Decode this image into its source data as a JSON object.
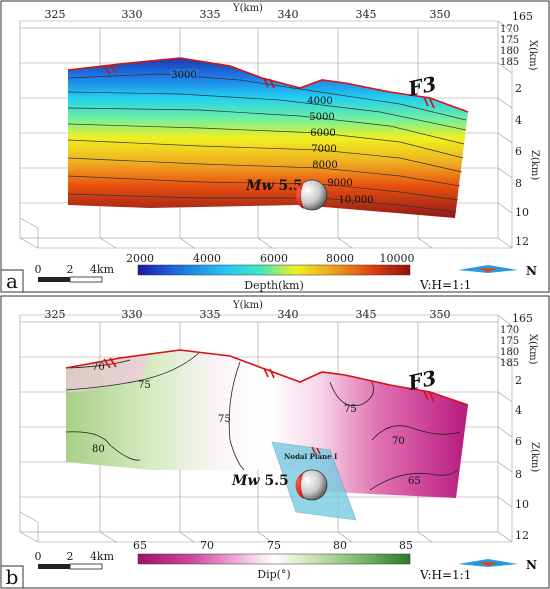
{
  "panels": [
    {
      "letter": "a",
      "y_axis_label": "Y(km)",
      "y_ticks": [
        "325",
        "330",
        "335",
        "340",
        "345",
        "350"
      ],
      "x_axis_label": "X(km)",
      "x_ticks": [
        "165",
        "170",
        "175",
        "180",
        "185"
      ],
      "z_axis_label": "Z(km)",
      "z_ticks": [
        "2",
        "4",
        "6",
        "8",
        "10",
        "12"
      ],
      "fault_label": "F3",
      "contour_labels": [
        "3000",
        "4000",
        "5000",
        "6000",
        "7000",
        "8000",
        "9000",
        "10,000"
      ],
      "event_label": "Mw 5.5",
      "event_prefix": "Mw",
      "event_mag": "5.5",
      "scale_bar": {
        "zero": "0",
        "mid": "2",
        "end": "4km"
      },
      "colorbar": {
        "ticks": [
          "2000",
          "4000",
          "6000",
          "8000",
          "10000"
        ],
        "label": "Depth(km)",
        "colors": [
          "#1a1aa8",
          "#1f6fe0",
          "#22c8f0",
          "#40e8c0",
          "#f0f020",
          "#f0a020",
          "#e04010",
          "#901010"
        ]
      },
      "ratio": "V:H=1:1",
      "north": "N"
    },
    {
      "letter": "b",
      "y_axis_label": "Y(km)",
      "y_ticks": [
        "325",
        "330",
        "335",
        "340",
        "345",
        "350"
      ],
      "x_axis_label": "X(km)",
      "x_ticks": [
        "165",
        "170",
        "175",
        "180",
        "185"
      ],
      "z_axis_label": "Z(km)",
      "z_ticks": [
        "2",
        "4",
        "6",
        "8",
        "10",
        "12"
      ],
      "fault_label": "F3",
      "contour_labels": [
        "70",
        "75",
        "80",
        "75",
        "75",
        "70",
        "65"
      ],
      "event_label": "Mw 5.5",
      "event_prefix": "Mw",
      "event_mag": "5.5",
      "nodal_plane_label": "Nodal Plane Ⅰ",
      "scale_bar": {
        "zero": "0",
        "mid": "2",
        "end": "4km"
      },
      "colorbar": {
        "ticks": [
          "65",
          "70",
          "75",
          "80",
          "85"
        ],
        "label": "Dip(°)",
        "colors": [
          "#a0106a",
          "#d04aa0",
          "#f0b8dc",
          "#ffffff",
          "#c8e0b0",
          "#7ab868",
          "#2a7a2a"
        ]
      },
      "ratio": "V:H=1:1",
      "north": "N"
    }
  ]
}
